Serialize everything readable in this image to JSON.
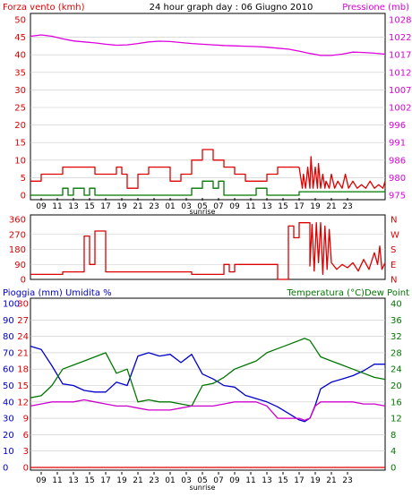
{
  "colors": {
    "wind": "#e00000",
    "gust": "#007700",
    "direction": "#dd0000",
    "pressure": "#dd00dd",
    "rain": "#dd0000",
    "humidity": "#0000cc",
    "temperature": "#007700",
    "dewpoint": "#cc00cc",
    "frame": "#000000",
    "grid": "#c8c8c8"
  },
  "chart_data": [
    {
      "type": "line",
      "title": "24 hour graph day : 06 Giugno 2010",
      "ylabel": "Forza vento (kmh)",
      "y2label": "Pressione (mb)",
      "yticks": [
        "50",
        "45",
        "40",
        "35",
        "30",
        "25",
        "20",
        "15",
        "10",
        "5",
        "0"
      ],
      "y2ticks": [
        "1028",
        "1022",
        "1017",
        "1012",
        "1007",
        "1002",
        "996",
        "991",
        "986",
        "980",
        "975"
      ],
      "xticks": [
        "09",
        "11",
        "13",
        "15",
        "17",
        "19",
        "21",
        "23",
        "01",
        "03",
        "05",
        "07",
        "09",
        "11",
        "13",
        "15",
        "17",
        "19",
        "21",
        "23"
      ],
      "xmarker": "sunrise",
      "ylim": [
        0,
        50
      ],
      "y2lim": [
        975,
        1028
      ],
      "series": [
        {
          "axis": "left",
          "color_key": "wind",
          "x": [
            0,
            1,
            1,
            3,
            3,
            6,
            6,
            8,
            8,
            8.5,
            8.5,
            9,
            9,
            10,
            10,
            11,
            11,
            13,
            13,
            14,
            14,
            15,
            15,
            16,
            16,
            17,
            17,
            18,
            18,
            19,
            19,
            20,
            20,
            22,
            22,
            23,
            23,
            25
          ],
          "values": [
            4,
            4,
            6,
            6,
            8,
            8,
            6,
            6,
            8,
            8,
            6,
            6,
            2,
            2,
            6,
            6,
            8,
            8,
            4,
            4,
            6,
            6,
            10,
            10,
            13,
            13,
            10,
            10,
            8,
            8,
            6,
            6,
            4,
            4,
            6,
            6,
            8,
            8
          ]
        },
        {
          "axis": "left",
          "color_key": "wind",
          "x": [
            25,
            25.3,
            25.4,
            25.6,
            25.8,
            26,
            26.1,
            26.3,
            26.5,
            26.7,
            26.8,
            27,
            27.2,
            27.4,
            27.5,
            27.8,
            28,
            28.3,
            28.6,
            29,
            29.3,
            29.6,
            30,
            30.4,
            30.8,
            31.2,
            31.6,
            32,
            32.4,
            32.8,
            33
          ],
          "values": [
            8,
            2,
            6,
            2,
            8,
            2,
            11,
            2,
            8,
            2,
            9,
            2,
            6,
            2,
            4,
            2,
            6,
            2,
            4,
            2,
            6,
            2,
            4,
            2,
            3,
            2,
            4,
            2,
            3,
            2,
            4
          ]
        },
        {
          "axis": "left",
          "color_key": "gust",
          "x": [
            0,
            3,
            3,
            3.5,
            3.5,
            4,
            4,
            5,
            5,
            5.5,
            5.5,
            6,
            6,
            15,
            15,
            16,
            16,
            17,
            17,
            17.5,
            17.5,
            18,
            18,
            21,
            21,
            22,
            22,
            25,
            25,
            33
          ],
          "values": [
            0,
            0,
            2,
            2,
            0,
            0,
            2,
            2,
            0,
            0,
            2,
            2,
            0,
            0,
            2,
            2,
            4,
            4,
            2,
            2,
            4,
            4,
            0,
            0,
            2,
            2,
            0,
            0,
            1,
            1
          ]
        },
        {
          "axis": "right",
          "color_key": "pressure",
          "x": [
            0,
            1,
            2,
            3,
            4,
            5,
            6,
            7,
            8,
            9,
            10,
            11,
            12,
            13,
            14,
            15,
            16,
            17,
            18,
            19,
            20,
            21,
            22,
            23,
            24,
            25,
            26,
            27,
            28,
            29,
            30,
            31,
            32,
            33
          ],
          "values": [
            1023,
            1023.4,
            1023,
            1022.2,
            1021.6,
            1021.3,
            1021,
            1020.6,
            1020.3,
            1020.4,
            1020.8,
            1021.3,
            1021.5,
            1021.4,
            1021.1,
            1020.8,
            1020.6,
            1020.4,
            1020.2,
            1020.1,
            1020,
            1019.9,
            1019.7,
            1019.4,
            1019.1,
            1018.5,
            1017.8,
            1017.2,
            1017.2,
            1017.6,
            1018.2,
            1018.1,
            1017.9,
            1017.6
          ]
        }
      ]
    },
    {
      "type": "line",
      "yticks": [
        "360",
        "270",
        "180",
        "90",
        "0"
      ],
      "y2ticks": [
        "N",
        "W",
        "S",
        "E",
        "N"
      ],
      "ylim": [
        0,
        360
      ],
      "series": [
        {
          "axis": "left",
          "color_key": "direction",
          "x": [
            0,
            3,
            3,
            5,
            5,
            5.5,
            5.5,
            6,
            6,
            7,
            7,
            15,
            15,
            18,
            18,
            18.5,
            18.5,
            19,
            19,
            23,
            23,
            24,
            24,
            24.5,
            24.5,
            25,
            25,
            26,
            26,
            26.2,
            26.4,
            26.6,
            26.8,
            27,
            27.2,
            27.4,
            27.6,
            27.8,
            28,
            28.5,
            29,
            29.5,
            30,
            30.5,
            31,
            31.5,
            32,
            32.3,
            32.5,
            32.7,
            33
          ],
          "values": [
            30,
            30,
            45,
            45,
            260,
            260,
            90,
            90,
            290,
            290,
            45,
            45,
            30,
            30,
            90,
            90,
            45,
            45,
            90,
            90,
            0,
            0,
            320,
            320,
            250,
            250,
            340,
            340,
            80,
            330,
            50,
            340,
            100,
            340,
            30,
            320,
            60,
            300,
            100,
            60,
            90,
            70,
            100,
            50,
            120,
            60,
            160,
            90,
            200,
            60,
            100
          ]
        }
      ]
    },
    {
      "type": "line",
      "ylabel": "Pioggia (mm)  Umidita %",
      "y2label": "Temperatura (°C)Dew Point",
      "yticks_outer": [
        "100",
        "90",
        "80",
        "70",
        "60",
        "50",
        "40",
        "30",
        "20",
        "10",
        "0"
      ],
      "yticks_inner": [
        "30",
        "27",
        "24",
        "21",
        "18",
        "15",
        "12",
        "9",
        "6",
        "3",
        "0"
      ],
      "y2ticks": [
        "40",
        "36",
        "32",
        "28",
        "24",
        "20",
        "16",
        "12",
        "8",
        "4",
        "0"
      ],
      "ylim": [
        0,
        100
      ],
      "y2lim": [
        0,
        40
      ],
      "series": [
        {
          "axis": "left",
          "color_key": "humidity",
          "x": [
            0,
            1,
            2,
            3,
            4,
            5,
            6,
            7,
            8,
            9,
            10,
            11,
            12,
            13,
            14,
            15,
            16,
            17,
            18,
            19,
            20,
            21,
            22,
            23,
            24,
            25,
            25.5,
            26,
            26.5,
            27,
            28,
            29,
            30,
            31,
            32,
            33
          ],
          "values": [
            74,
            72,
            62,
            51,
            50,
            47,
            46,
            46,
            52,
            50,
            68,
            70,
            68,
            69,
            64,
            69,
            57,
            54,
            50,
            49,
            44,
            42,
            40,
            37,
            33,
            29,
            28,
            30,
            38,
            48,
            52,
            54,
            56,
            59,
            63,
            63
          ]
        },
        {
          "axis": "right",
          "color_key": "temperature",
          "x": [
            0,
            1,
            2,
            3,
            4,
            5,
            6,
            7,
            8,
            9,
            10,
            11,
            12,
            13,
            14,
            15,
            16,
            17,
            18,
            19,
            20,
            21,
            22,
            23,
            24,
            25,
            25.5,
            26,
            26.5,
            27,
            28,
            29,
            30,
            31,
            32,
            33
          ],
          "values": [
            17,
            17.5,
            20,
            24,
            25,
            26,
            27,
            28,
            23,
            24,
            16,
            16.5,
            16,
            16,
            15.5,
            15,
            20,
            20.5,
            22,
            24,
            25,
            26,
            28,
            29,
            30,
            31,
            31.5,
            31,
            29,
            27,
            26,
            25,
            24,
            23,
            22,
            21.5
          ]
        },
        {
          "axis": "right",
          "color_key": "dewpoint",
          "x": [
            0,
            1,
            2,
            3,
            4,
            5,
            6,
            7,
            8,
            9,
            10,
            11,
            12,
            13,
            14,
            15,
            16,
            17,
            18,
            19,
            20,
            21,
            22,
            23,
            24,
            25,
            25.5,
            26,
            26.5,
            27,
            28,
            29,
            30,
            31,
            32,
            33
          ],
          "values": [
            15,
            15.5,
            16,
            16,
            16,
            16.5,
            16,
            15.5,
            15,
            15,
            14.5,
            14,
            14,
            14,
            14.5,
            15,
            15,
            15,
            15.5,
            16,
            16,
            16,
            15,
            12,
            12,
            12,
            11.5,
            12,
            15,
            16,
            16,
            16,
            16,
            15.5,
            15.5,
            15
          ]
        },
        {
          "axis": "left",
          "color_key": "rain",
          "x": [
            0,
            33
          ],
          "values": [
            0,
            0
          ]
        }
      ]
    }
  ]
}
